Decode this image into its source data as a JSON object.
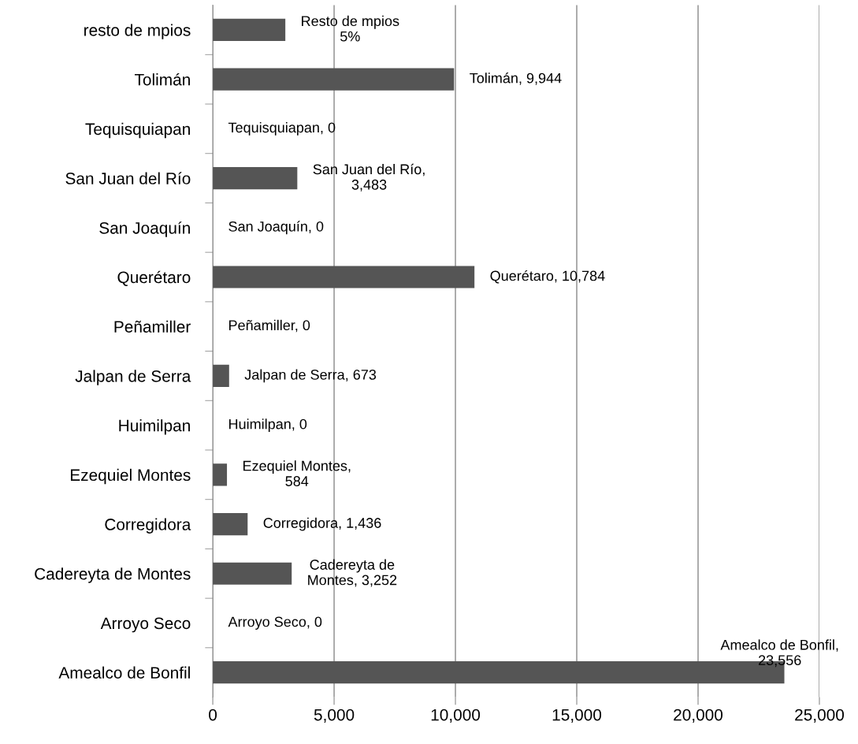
{
  "chart_data": {
    "type": "bar",
    "orientation": "horizontal",
    "categories": [
      "resto de mpios",
      "Tolimán",
      "Tequisquiapan",
      "San Juan del Río",
      "San Joaquín",
      "Querétaro",
      "Peñamiller",
      "Jalpan de Serra",
      "Huimilpan",
      "Ezequiel Montes",
      "Corregidora",
      "Cadereyta de Montes",
      "Arroyo Seco",
      "Amealco de Bonfil"
    ],
    "values": [
      2990,
      9944,
      0,
      3483,
      0,
      10784,
      0,
      673,
      0,
      584,
      1436,
      3252,
      0,
      23556
    ],
    "value_labels": [
      "Resto de mpios\n5%",
      "Tolimán, 9,944",
      "Tequisquiapan, 0",
      "San Juan del Río,\n3,483",
      "San Joaquín, 0",
      "Querétaro, 10,784",
      "Peñamiller, 0",
      "Jalpan de Serra, 673",
      "Huimilpan, 0",
      "Ezequiel Montes,\n584",
      "Corregidora, 1,436",
      "Cadereyta de\nMontes, 3,252",
      "Arroyo Seco, 0",
      "Amealco de Bonfil,\n23,556"
    ],
    "color": "#555555",
    "xlim": [
      0,
      25000
    ],
    "xticks": [
      0,
      {
        "value": 5000,
        "label": "5,000"
      },
      {
        "value": 10000,
        "label": "10,000"
      },
      {
        "value": 15000,
        "label": "15,000"
      },
      {
        "value": 20000,
        "label": "20,000"
      },
      {
        "value": 25000,
        "label": "25,000"
      }
    ],
    "grid": "x",
    "legend": false
  }
}
